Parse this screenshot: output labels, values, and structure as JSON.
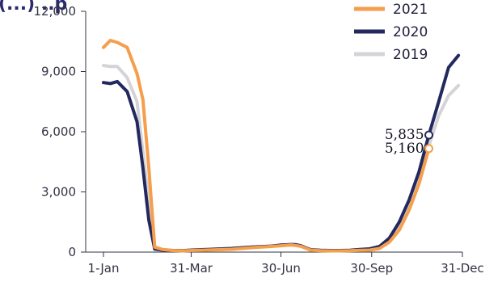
{
  "chart_data": {
    "type": "line",
    "title_fragment": "(...)  ..p",
    "y_ticks": [
      "0",
      "3,000",
      "6,000",
      "9,000",
      "12,000"
    ],
    "ylim": [
      0,
      12000
    ],
    "x_ticks": [
      "1-Jan",
      "31-Mar",
      "30-Jun",
      "30-Sep",
      "31-Dec"
    ],
    "x_tick_days": [
      0,
      89,
      180,
      272,
      364
    ],
    "legend_position": "top-right",
    "grid": false,
    "series": [
      {
        "name": "2021",
        "color": "#F59E4C",
        "x": [
          0,
          7,
          14,
          24,
          34,
          40,
          46,
          52,
          60,
          70,
          80,
          90,
          110,
          130,
          150,
          170,
          180,
          190,
          195,
          200,
          210,
          220,
          230,
          240,
          250,
          260,
          270,
          280,
          290,
          300,
          310,
          320,
          330
        ],
        "y": [
          10200,
          10550,
          10450,
          10200,
          8900,
          7600,
          4200,
          250,
          130,
          80,
          60,
          80,
          110,
          140,
          220,
          280,
          320,
          360,
          330,
          290,
          100,
          70,
          60,
          60,
          70,
          90,
          100,
          180,
          500,
          1100,
          2100,
          3400,
          5160
        ]
      },
      {
        "name": "2020",
        "color": "#23295E",
        "x": [
          0,
          7,
          14,
          24,
          34,
          40,
          46,
          52,
          60,
          70,
          80,
          90,
          110,
          130,
          150,
          170,
          180,
          190,
          195,
          200,
          210,
          220,
          230,
          240,
          250,
          260,
          270,
          280,
          290,
          300,
          310,
          320,
          330,
          340,
          350,
          360
        ],
        "y": [
          8450,
          8400,
          8500,
          8000,
          6500,
          4200,
          1600,
          150,
          100,
          80,
          70,
          100,
          140,
          180,
          250,
          300,
          350,
          380,
          370,
          320,
          120,
          90,
          80,
          80,
          90,
          130,
          160,
          280,
          700,
          1500,
          2600,
          4000,
          5835,
          7500,
          9200,
          9800
        ]
      },
      {
        "name": "2019",
        "color": "#D4D4D8",
        "x": [
          0,
          7,
          14,
          24,
          34,
          40,
          46,
          52,
          60,
          70,
          80,
          90,
          110,
          130,
          150,
          170,
          180,
          190,
          195,
          200,
          210,
          220,
          230,
          240,
          250,
          260,
          270,
          280,
          290,
          300,
          310,
          320,
          330,
          340,
          350,
          360
        ],
        "y": [
          9300,
          9250,
          9250,
          8700,
          7500,
          5000,
          2500,
          200,
          120,
          90,
          80,
          100,
          140,
          180,
          250,
          300,
          330,
          360,
          350,
          310,
          120,
          90,
          80,
          80,
          90,
          130,
          160,
          260,
          650,
          1400,
          2400,
          3700,
          5300,
          6800,
          7800,
          8300
        ]
      }
    ],
    "annotations": [
      {
        "label": "5,835",
        "x": 330,
        "y": 5835,
        "series": "2020"
      },
      {
        "label": "5,160",
        "x": 330,
        "y": 5160,
        "series": "2021"
      }
    ]
  }
}
